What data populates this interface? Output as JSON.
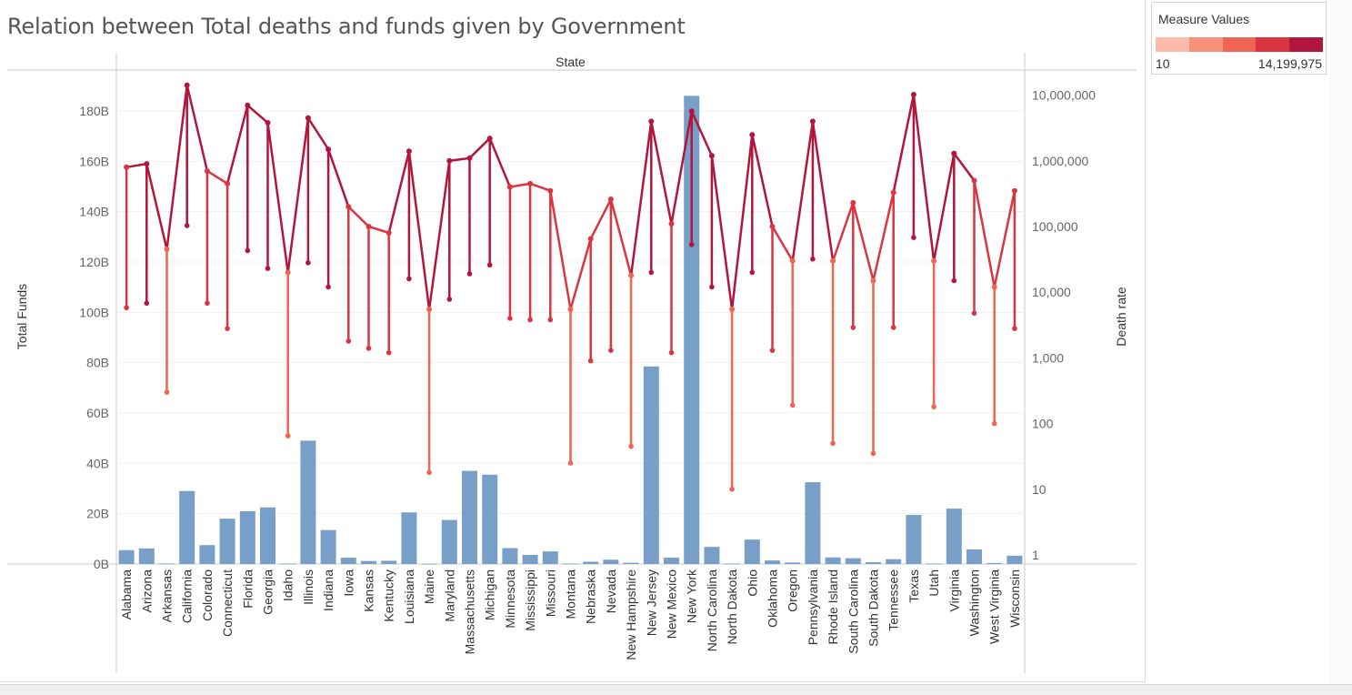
{
  "title": "Relation between Total deaths and funds given by Government",
  "legend": {
    "title": "Measure Values",
    "min_label": "10",
    "max_label": "14,199,975",
    "colors": [
      "#fcbba8",
      "#f8917a",
      "#ef6552",
      "#da3541",
      "#b2163c"
    ]
  },
  "chart_data": {
    "type": "bar",
    "header": "State",
    "ylabel": "Total Funds",
    "y2label": "Death rate",
    "ylim": [
      0,
      180000000000
    ],
    "y2_scale": "log",
    "y2lim": [
      1,
      14199975
    ],
    "yticks": [
      "0B",
      "20B",
      "40B",
      "60B",
      "80B",
      "100B",
      "120B",
      "140B",
      "160B",
      "180B"
    ],
    "y2ticks": [
      "1",
      "10",
      "100",
      "1,000",
      "10,000",
      "100,000",
      "1,000,000",
      "10,000,000"
    ],
    "bar_color": "#779fc7",
    "categories": [
      "Alabama",
      "Arizona",
      "Arkansas",
      "California",
      "Colorado",
      "Connecticut",
      "Florida",
      "Georgia",
      "Idaho",
      "Illinois",
      "Indiana",
      "Iowa",
      "Kansas",
      "Kentucky",
      "Louisiana",
      "Maine",
      "Maryland",
      "Massachusetts",
      "Michigan",
      "Minnesota",
      "Mississippi",
      "Missouri",
      "Montana",
      "Nebraska",
      "Nevada",
      "New Hampshire",
      "New Jersey",
      "New Mexico",
      "New York",
      "North Carolina",
      "North Dakota",
      "Ohio",
      "Oklahoma",
      "Oregon",
      "Pennsylvania",
      "Rhode Island",
      "South Carolina",
      "South Dakota",
      "Tennessee",
      "Texas",
      "Utah",
      "Virginia",
      "Washington",
      "West Virginia",
      "Wisconsin"
    ],
    "values": [
      5500000000,
      6200000000,
      200000000,
      29000000000,
      7500000000,
      18000000000,
      21000000000,
      22500000000,
      200000000,
      49000000000,
      13500000000,
      2500000000,
      1200000000,
      1300000000,
      20500000000,
      100000000,
      17500000000,
      37000000000,
      35500000000,
      6300000000,
      3600000000,
      5000000000,
      200000000,
      900000000,
      1700000000,
      500000000,
      78500000000,
      2500000000,
      186000000000,
      6800000000,
      200000000,
      9700000000,
      1400000000,
      600000000,
      32500000000,
      2600000000,
      2300000000,
      700000000,
      1900000000,
      19500000000,
      200000000,
      22000000000,
      5800000000,
      400000000,
      3300000000
    ],
    "death_series": [
      {
        "name": "Total deaths",
        "values": [
          800000,
          900000,
          45000,
          14199975,
          700000,
          450000,
          7000000,
          3800000,
          20000,
          4500000,
          1500000,
          200000,
          100000,
          80000,
          1400000,
          5500,
          1000000,
          1100000,
          2200000,
          400000,
          450000,
          350000,
          5500,
          65000,
          260000,
          18000,
          4000000,
          110000,
          5700000,
          1200000,
          5500,
          2500000,
          100000,
          30000,
          4000000,
          30000,
          230000,
          15000,
          330000,
          10200000,
          30000,
          1300000,
          500000,
          12000,
          350000
        ]
      },
      {
        "name": "Death rate",
        "values": [
          5800,
          6800,
          300,
          103000,
          6800,
          2800,
          43000,
          23000,
          65,
          28000,
          12000,
          1800,
          1400,
          1200,
          16000,
          18,
          7800,
          19000,
          26000,
          4000,
          3800,
          3800,
          25,
          900,
          1300,
          45,
          20000,
          1200,
          53000,
          12000,
          10,
          20000,
          1300,
          190,
          32000,
          50,
          2900,
          35,
          2900,
          68000,
          180,
          15000,
          4800,
          100,
          2800
        ]
      }
    ]
  }
}
